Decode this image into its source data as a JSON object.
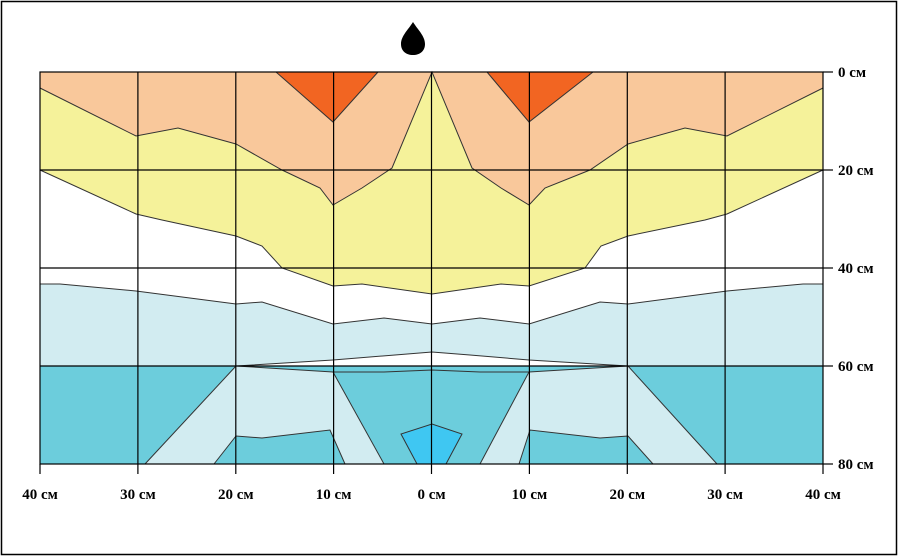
{
  "diagram": {
    "depth_labels": [
      "0 см",
      "20 см",
      "40 см",
      "60 см",
      "80 см"
    ],
    "distance_labels": [
      "40 см",
      "30 см",
      "20 см",
      "10 см",
      "0 см",
      "10 см",
      "20 см",
      "30 см",
      "40 см"
    ],
    "dripper_icon": "drop-icon",
    "zone_colors": {
      "very_wet": "#F26522",
      "wet": "#F9C89B",
      "moist": "#F5F29A",
      "dry": "#FFFFFF",
      "deep_light": "#D2ECF1",
      "deep_medium": "#6CCDDC",
      "deep_core": "#3FC7F2"
    },
    "grid_color": "#000000",
    "outline_color": "#4a4a4a"
  }
}
